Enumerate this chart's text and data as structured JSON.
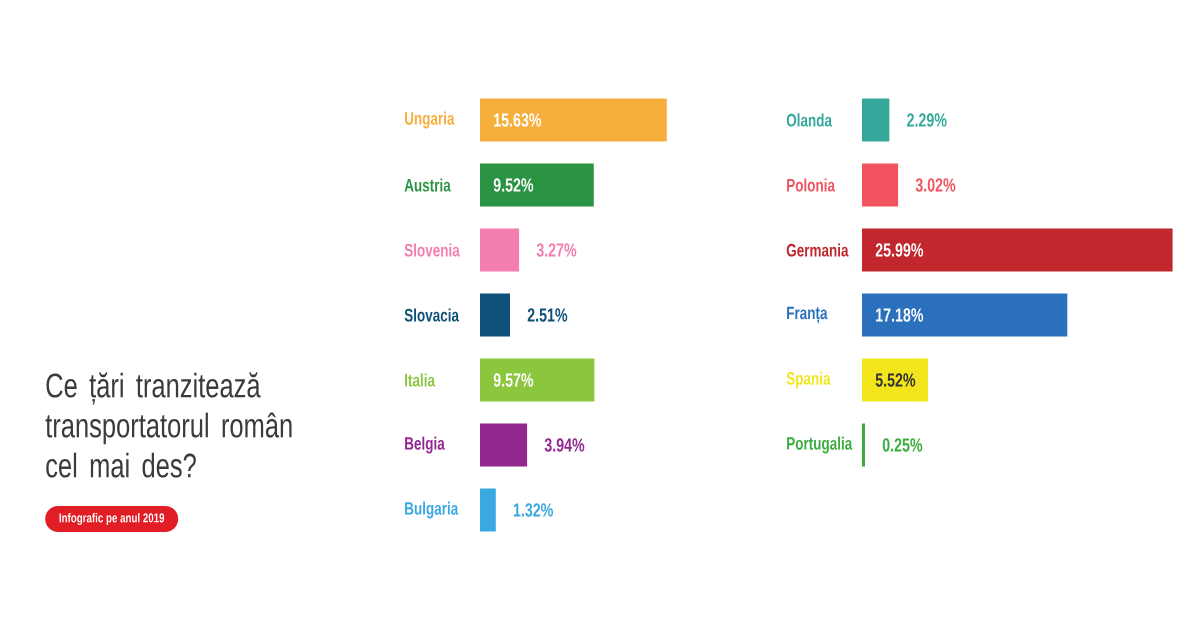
{
  "chart_data": [
    {
      "type": "other",
      "title": "Ce țări tranzitează transportatorul român cel mai des?",
      "subtitle": "Infografic pe anul 2019"
    },
    {
      "type": "bar",
      "orientation": "horizontal",
      "tick_labels": "y",
      "categories": [
        "Ungaria",
        "Austria",
        "Slovenia",
        "Slovacia",
        "Italia",
        "Belgia",
        "Bulgaria"
      ],
      "values": [
        15.63,
        9.52,
        3.27,
        2.51,
        9.57,
        3.94,
        1.32
      ],
      "colors": [
        "#f6ae3c",
        "#2b9443",
        "#f47eb0",
        "#0e5179",
        "#8cc63f",
        "#92278f",
        "#3aa8e1"
      ],
      "value_labels": [
        "15.63%",
        "9.52%",
        "3.27%",
        "2.51%",
        "9.57%",
        "3.94%",
        "1.32%"
      ]
    },
    {
      "type": "bar",
      "orientation": "horizontal",
      "tick_labels": "y",
      "categories": [
        "Olanda",
        "Polonia",
        "Germania",
        "Franța",
        "Spania",
        "Portugalia"
      ],
      "values": [
        2.29,
        3.02,
        25.99,
        17.18,
        5.52,
        0.25
      ],
      "colors": [
        "#34a99b",
        "#f2545f",
        "#c1272d",
        "#2a70bc",
        "#f3e51b",
        "#3bab3e"
      ],
      "value_labels": [
        "2.29%",
        "3.02%",
        "25.99%",
        "17.18%",
        "5.52%",
        "0.25%"
      ]
    }
  ]
}
